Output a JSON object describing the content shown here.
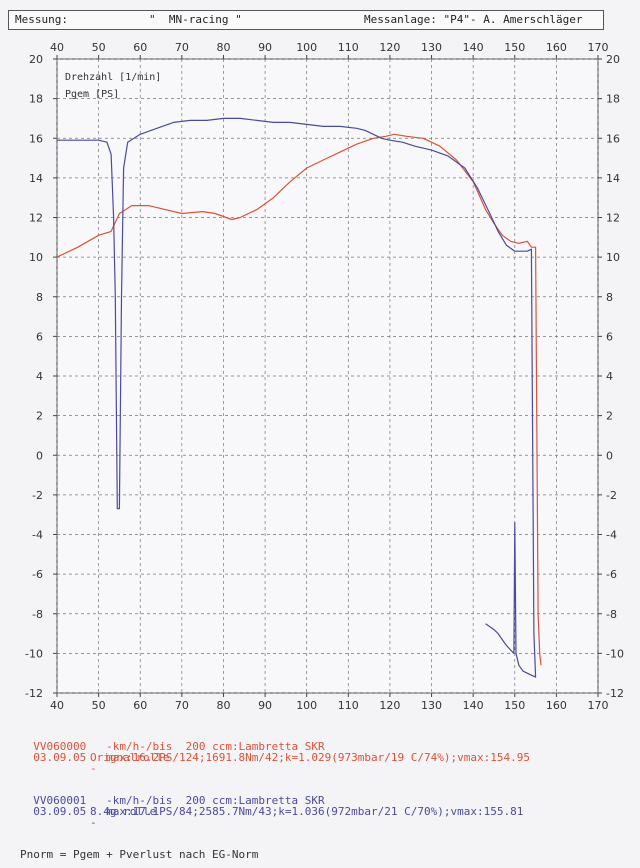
{
  "header": {
    "measurement_label": "Messung:",
    "measurement_value": "\"  MN-racing \"",
    "facility": "Messanlage: \"P4\"- A. Amerschläger"
  },
  "chart_data": {
    "type": "line",
    "xlim": [
      40,
      170
    ],
    "ylim": [
      -12,
      20
    ],
    "x_ticks": [
      40,
      50,
      60,
      70,
      80,
      90,
      100,
      110,
      120,
      130,
      140,
      150,
      160,
      170
    ],
    "y_ticks": [
      -12,
      -10,
      -8,
      -6,
      -4,
      -2,
      0,
      2,
      4,
      6,
      8,
      10,
      12,
      14,
      16,
      18,
      20
    ],
    "grid": true,
    "legend": [
      "Drehzahl [1/min]",
      "Pgem [PS]"
    ],
    "series": [
      {
        "color": "#d9533a",
        "points": [
          [
            40,
            10.0
          ],
          [
            45,
            10.5
          ],
          [
            50,
            11.1
          ],
          [
            53,
            11.3
          ],
          [
            55,
            12.2
          ],
          [
            58,
            12.6
          ],
          [
            62,
            12.6
          ],
          [
            66,
            12.4
          ],
          [
            70,
            12.2
          ],
          [
            75,
            12.3
          ],
          [
            78,
            12.2
          ],
          [
            82,
            11.9
          ],
          [
            84,
            12.0
          ],
          [
            88,
            12.4
          ],
          [
            92,
            13.0
          ],
          [
            96,
            13.8
          ],
          [
            100,
            14.5
          ],
          [
            104,
            14.9
          ],
          [
            108,
            15.3
          ],
          [
            112,
            15.7
          ],
          [
            116,
            16.0
          ],
          [
            119,
            16.1
          ],
          [
            121,
            16.2
          ],
          [
            124,
            16.1
          ],
          [
            128,
            16.0
          ],
          [
            132,
            15.6
          ],
          [
            136,
            14.9
          ],
          [
            140,
            13.8
          ],
          [
            143,
            12.4
          ],
          [
            145,
            11.7
          ],
          [
            147,
            11.1
          ],
          [
            149,
            10.8
          ],
          [
            151,
            10.7
          ],
          [
            153,
            10.8
          ],
          [
            154,
            10.5
          ],
          [
            155,
            10.5
          ],
          [
            155.6,
            -8.0
          ],
          [
            156,
            -10.0
          ],
          [
            156.3,
            -10.6
          ]
        ]
      },
      {
        "color": "#4a4aa0",
        "points": [
          [
            40,
            15.9
          ],
          [
            48,
            15.9
          ],
          [
            50,
            15.9
          ],
          [
            52,
            15.8
          ],
          [
            53,
            15.2
          ],
          [
            53.6,
            12.0
          ],
          [
            54,
            8.0
          ],
          [
            54.5,
            -2.7
          ],
          [
            55,
            -2.7
          ],
          [
            55.5,
            8.0
          ],
          [
            56,
            14.5
          ],
          [
            57,
            15.8
          ],
          [
            60,
            16.2
          ],
          [
            64,
            16.5
          ],
          [
            68,
            16.8
          ],
          [
            72,
            16.9
          ],
          [
            76,
            16.9
          ],
          [
            80,
            17.0
          ],
          [
            84,
            17.0
          ],
          [
            88,
            16.9
          ],
          [
            92,
            16.8
          ],
          [
            96,
            16.8
          ],
          [
            100,
            16.7
          ],
          [
            104,
            16.6
          ],
          [
            108,
            16.6
          ],
          [
            112,
            16.5
          ],
          [
            114,
            16.4
          ],
          [
            116,
            16.2
          ],
          [
            118,
            16.0
          ],
          [
            120,
            15.9
          ],
          [
            123,
            15.8
          ],
          [
            126,
            15.6
          ],
          [
            130,
            15.4
          ],
          [
            134,
            15.1
          ],
          [
            138,
            14.5
          ],
          [
            141,
            13.5
          ],
          [
            144,
            12.2
          ],
          [
            146,
            11.3
          ],
          [
            148,
            10.6
          ],
          [
            150,
            10.3
          ],
          [
            152,
            10.3
          ],
          [
            153,
            10.3
          ],
          [
            154,
            10.4
          ],
          [
            154.6,
            -9.0
          ],
          [
            155,
            -11.2
          ],
          [
            154,
            -11.1
          ],
          [
            152,
            -10.9
          ],
          [
            151,
            -10.6
          ],
          [
            150.3,
            -10.0
          ],
          [
            150,
            -3.4
          ],
          [
            149.8,
            -10.0
          ],
          [
            148,
            -9.6
          ],
          [
            146,
            -9.0
          ],
          [
            145,
            -8.8
          ],
          [
            143,
            -8.5
          ]
        ]
      }
    ]
  },
  "records": [
    {
      "id": "VV060000",
      "date": "03.09.05",
      "line1": "-km/h-/bis  200 ccm:Lambretta SKR",
      "line2": "max:16.2PS/124;1691.8Nm/42;k=1.029(973mbar/19 C/74%);vmax:154.95",
      "line3": "Orignalrolle",
      "line4": "-",
      "color": "#d9533a"
    },
    {
      "id": "VV060001",
      "date": "03.09.05",
      "line1": "-km/h-/bis  200 ccm:Lambretta SKR",
      "line2": "max:17.1PS/84;2585.7Nm/43;k=1.036(972mbar/21 C/70%);vmax:155.81",
      "line3": "8.4g rolle",
      "line4": "-",
      "color": "#4a4aa0"
    }
  ],
  "footer": "Pnorm = Pgem + Pverlust nach EG-Norm"
}
